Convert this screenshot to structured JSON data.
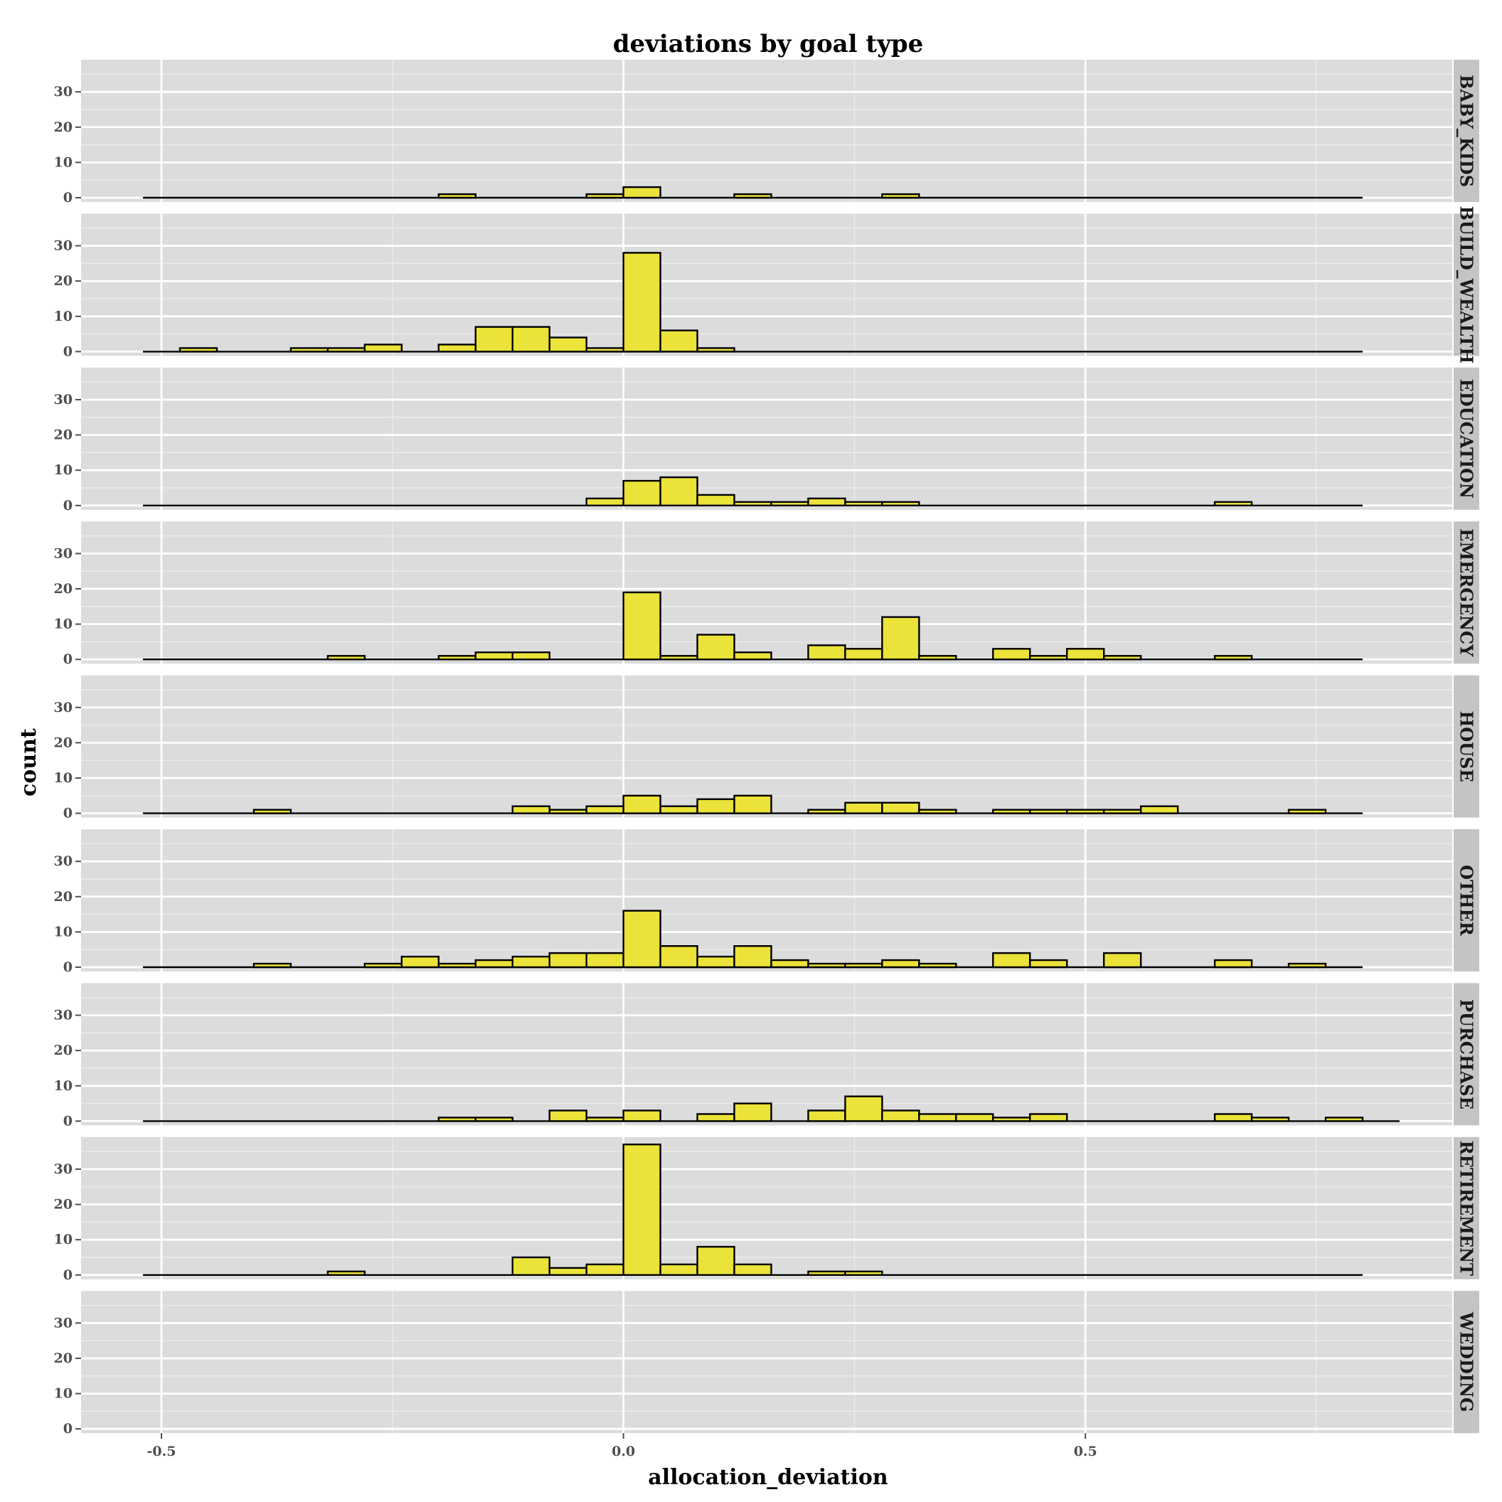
{
  "chart_data": {
    "type": "bar",
    "title": "deviations by goal type",
    "xlabel": "allocation_deviation",
    "ylabel": "count",
    "xlim": [
      -0.587,
      0.897
    ],
    "ylim": [
      0,
      38.7
    ],
    "x_ticks": [
      {
        "value": -0.5,
        "label": "-0.5"
      },
      {
        "value": 0.0,
        "label": "0.0"
      },
      {
        "value": 0.5,
        "label": "0.5"
      }
    ],
    "y_ticks": [
      {
        "value": 0,
        "label": "0"
      },
      {
        "value": 10,
        "label": "10"
      },
      {
        "value": 20,
        "label": "20"
      },
      {
        "value": 30,
        "label": "30"
      }
    ],
    "bin_start": -0.52,
    "bin_width": 0.04,
    "bar_fill": "#ebe23a",
    "bar_outline": "#000000",
    "panel_background": "#dcdcdc",
    "strip_background": "#c4c4c4",
    "grid": true,
    "facets": [
      {
        "name": "BABY_KIDS",
        "counts": [
          0,
          0,
          0,
          0,
          0,
          0,
          0,
          0,
          1,
          0,
          0,
          0,
          1,
          3,
          0,
          0,
          1,
          0,
          0,
          0,
          1,
          0,
          0,
          0,
          0,
          0,
          0,
          0,
          0,
          0,
          0,
          0,
          0
        ]
      },
      {
        "name": "BUILD_WEALTH",
        "counts": [
          0,
          1,
          0,
          0,
          1,
          1,
          2,
          0,
          2,
          7,
          7,
          4,
          1,
          28,
          6,
          1,
          0,
          0,
          0,
          0,
          0,
          0,
          0,
          0,
          0,
          0,
          0,
          0,
          0,
          0,
          0,
          0,
          0
        ]
      },
      {
        "name": "EDUCATION",
        "counts": [
          0,
          0,
          0,
          0,
          0,
          0,
          0,
          0,
          0,
          0,
          0,
          0,
          2,
          7,
          8,
          3,
          1,
          1,
          2,
          1,
          1,
          0,
          0,
          0,
          0,
          0,
          0,
          0,
          0,
          1,
          0,
          0,
          0
        ]
      },
      {
        "name": "EMERGENCY",
        "counts": [
          0,
          0,
          0,
          0,
          0,
          1,
          0,
          0,
          1,
          2,
          2,
          0,
          0,
          19,
          1,
          7,
          2,
          0,
          4,
          3,
          12,
          1,
          0,
          3,
          1,
          3,
          1,
          0,
          0,
          1,
          0,
          0,
          0
        ]
      },
      {
        "name": "HOUSE",
        "counts": [
          0,
          0,
          0,
          1,
          0,
          0,
          0,
          0,
          0,
          0,
          2,
          1,
          2,
          5,
          2,
          4,
          5,
          0,
          1,
          3,
          3,
          1,
          0,
          1,
          1,
          1,
          1,
          2,
          0,
          0,
          0,
          1,
          0
        ]
      },
      {
        "name": "OTHER",
        "counts": [
          0,
          0,
          0,
          1,
          0,
          0,
          1,
          3,
          1,
          2,
          3,
          4,
          4,
          16,
          6,
          3,
          6,
          2,
          1,
          1,
          2,
          1,
          0,
          4,
          2,
          0,
          4,
          0,
          0,
          2,
          0,
          1,
          0
        ]
      },
      {
        "name": "PURCHASE",
        "counts": [
          0,
          0,
          0,
          0,
          0,
          0,
          0,
          0,
          1,
          1,
          0,
          3,
          1,
          3,
          0,
          2,
          5,
          0,
          3,
          7,
          3,
          2,
          2,
          1,
          2,
          0,
          0,
          0,
          0,
          2,
          1,
          0,
          1,
          0
        ]
      },
      {
        "name": "RETIREMENT",
        "counts": [
          0,
          0,
          0,
          0,
          0,
          1,
          0,
          0,
          0,
          0,
          5,
          2,
          3,
          37,
          3,
          8,
          3,
          0,
          1,
          1,
          0,
          0,
          0,
          0,
          0,
          0,
          0,
          0,
          0,
          0,
          0,
          0,
          0
        ]
      },
      {
        "name": "WEDDING",
        "counts": []
      }
    ]
  }
}
